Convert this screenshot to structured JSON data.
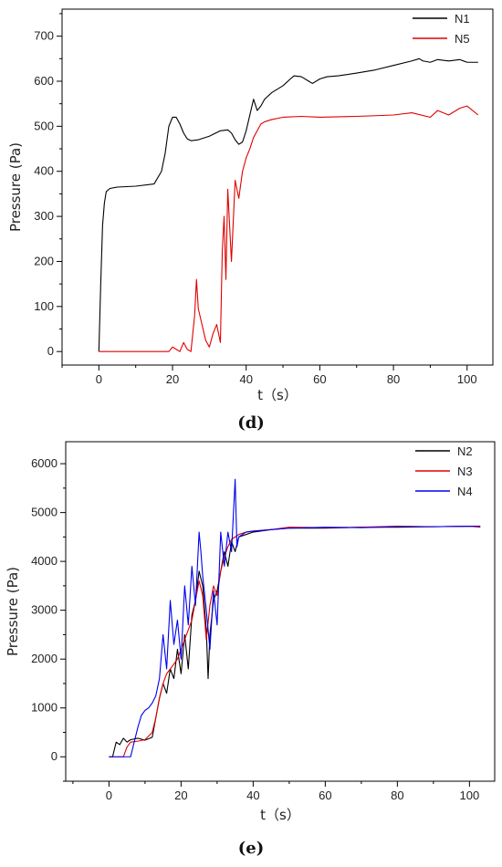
{
  "chart_data": [
    {
      "type": "line",
      "panel_label": "(d)",
      "xlabel": "t（s）",
      "ylabel": "Pressure (Pa)",
      "xlim": [
        -10,
        107
      ],
      "ylim": [
        -30,
        760
      ],
      "xticks": [
        0,
        20,
        40,
        60,
        80,
        100
      ],
      "yticks": [
        0,
        100,
        200,
        300,
        400,
        500,
        600,
        700
      ],
      "grid": false,
      "legend_placement": "top-right",
      "series": [
        {
          "name": "N1",
          "color": "#000000",
          "x": [
            0,
            0.5,
            1,
            1.5,
            2,
            3,
            5,
            10,
            15,
            17,
            18,
            19,
            20,
            21,
            22,
            23,
            24,
            25,
            27,
            30,
            33,
            35,
            36,
            37,
            38,
            39,
            40,
            41,
            42,
            43,
            44,
            45,
            47,
            50,
            52,
            53,
            55,
            57,
            58,
            60,
            62,
            65,
            70,
            75,
            80,
            85,
            87,
            88,
            90,
            92,
            95,
            98,
            100,
            103
          ],
          "y": [
            0,
            150,
            280,
            330,
            355,
            362,
            365,
            367,
            372,
            400,
            440,
            500,
            520,
            520,
            505,
            485,
            472,
            468,
            470,
            478,
            490,
            492,
            485,
            470,
            460,
            465,
            490,
            525,
            560,
            535,
            545,
            560,
            575,
            590,
            605,
            612,
            610,
            600,
            595,
            605,
            610,
            612,
            618,
            625,
            635,
            645,
            650,
            645,
            642,
            648,
            645,
            648,
            642,
            642
          ]
        },
        {
          "name": "N5",
          "color": "#e00000",
          "x": [
            0,
            5,
            10,
            15,
            19,
            20,
            21,
            22,
            23,
            24,
            25,
            26,
            26.5,
            27,
            28,
            29,
            30,
            31,
            32,
            33,
            33.5,
            34,
            34.5,
            35,
            36,
            37,
            38,
            39,
            40,
            41,
            42,
            43,
            44,
            45,
            47,
            50,
            55,
            60,
            70,
            80,
            85,
            90,
            92,
            95,
            98,
            100,
            103
          ],
          "y": [
            0,
            0,
            0,
            0,
            0,
            10,
            5,
            0,
            20,
            5,
            0,
            80,
            160,
            95,
            60,
            25,
            10,
            40,
            60,
            20,
            220,
            300,
            160,
            360,
            200,
            380,
            340,
            400,
            430,
            450,
            475,
            490,
            505,
            510,
            515,
            520,
            522,
            520,
            522,
            525,
            530,
            520,
            535,
            525,
            540,
            545,
            525
          ]
        }
      ]
    },
    {
      "type": "line",
      "panel_label": "(e)",
      "xlabel": "t（s）",
      "ylabel": "Pressure (Pa)",
      "xlim": [
        -12,
        107
      ],
      "ylim": [
        -500,
        6450
      ],
      "xticks": [
        0,
        20,
        40,
        60,
        80,
        100
      ],
      "yticks": [
        0,
        1000,
        2000,
        3000,
        4000,
        5000,
        6000
      ],
      "grid": false,
      "legend_placement": "top-right",
      "series": [
        {
          "name": "N2",
          "color": "#000000",
          "x": [
            0,
            1,
            2,
            3,
            4,
            5,
            6,
            8,
            10,
            12,
            13,
            14,
            15,
            16,
            17,
            18,
            19,
            20,
            21,
            22,
            23,
            24,
            25,
            26,
            27,
            27.5,
            28,
            29,
            30,
            31,
            32,
            33,
            34,
            35,
            36,
            38,
            40,
            45,
            50,
            60,
            70,
            80,
            90,
            100,
            103
          ],
          "y": [
            0,
            0,
            300,
            250,
            380,
            300,
            350,
            380,
            340,
            400,
            800,
            1200,
            1500,
            1300,
            1800,
            1600,
            2200,
            1700,
            2500,
            1800,
            2900,
            3200,
            3800,
            3500,
            2600,
            1600,
            2500,
            3200,
            3400,
            3800,
            4200,
            3900,
            4400,
            4200,
            4500,
            4550,
            4600,
            4650,
            4680,
            4680,
            4700,
            4700,
            4710,
            4720,
            4710
          ]
        },
        {
          "name": "N3",
          "color": "#e00000",
          "x": [
            0,
            2,
            4,
            5,
            6,
            8,
            10,
            12,
            13,
            14,
            15,
            16,
            17,
            18,
            19,
            20,
            21,
            22,
            23,
            24,
            25,
            26,
            27,
            28,
            29,
            30,
            31,
            32,
            33,
            34,
            35,
            36,
            38,
            40,
            45,
            50,
            60,
            70,
            80,
            90,
            100,
            103
          ],
          "y": [
            0,
            0,
            0,
            200,
            300,
            320,
            350,
            500,
            800,
            1200,
            1500,
            1700,
            1800,
            1900,
            2000,
            2200,
            2400,
            2600,
            2800,
            3200,
            3600,
            3300,
            2400,
            3100,
            3500,
            3300,
            3800,
            4100,
            4300,
            4450,
            4500,
            4550,
            4600,
            4620,
            4650,
            4700,
            4690,
            4700,
            4720,
            4710,
            4720,
            4700
          ]
        },
        {
          "name": "N4",
          "color": "#0000ee",
          "x": [
            0,
            3,
            6,
            7,
            8,
            9,
            10,
            11,
            12,
            13,
            14,
            15,
            16,
            17,
            18,
            19,
            20,
            21,
            22,
            23,
            24,
            25,
            25.5,
            26,
            27,
            28,
            29,
            30,
            31,
            32,
            33,
            34,
            35,
            35.5,
            36,
            37,
            38,
            40,
            45,
            50,
            60,
            70,
            80,
            90,
            100,
            103
          ],
          "y": [
            0,
            0,
            0,
            300,
            600,
            850,
            950,
            1000,
            1100,
            1250,
            1600,
            2500,
            1800,
            3200,
            2300,
            2800,
            2000,
            3500,
            2700,
            3900,
            3100,
            4600,
            4200,
            3700,
            3000,
            2200,
            3400,
            2700,
            4600,
            3900,
            4600,
            4200,
            5680,
            4300,
            4500,
            4550,
            4600,
            4620,
            4650,
            4680,
            4700,
            4690,
            4710,
            4710,
            4720,
            4720
          ]
        }
      ]
    }
  ]
}
